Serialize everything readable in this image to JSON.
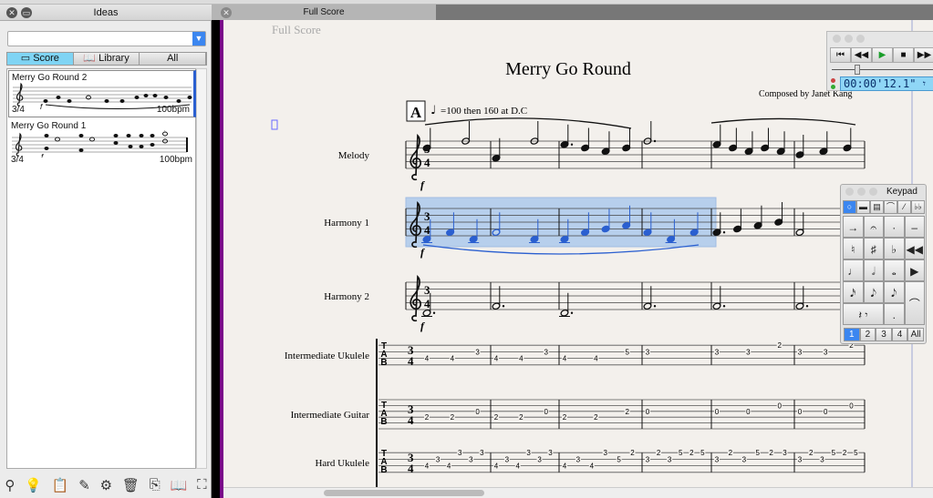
{
  "ideas_panel": {
    "title": "Ideas",
    "search_value": "",
    "tabs": [
      {
        "label": "Score",
        "selected": true
      },
      {
        "label": "Library",
        "selected": false
      },
      {
        "label": "All",
        "selected": false
      }
    ],
    "items": [
      {
        "title": "Merry Go Round 2",
        "time_signature": "3/4",
        "tempo": "100bpm",
        "dynamic": "f",
        "selected": true
      },
      {
        "title": "Merry Go Round 1",
        "time_signature": "3/4",
        "tempo": "100bpm",
        "dynamic": "f",
        "selected": false
      }
    ],
    "toolbar_icons": [
      "capture-idea-icon",
      "new-idea-icon",
      "paste-idea-icon",
      "edit-idea-icon",
      "idea-settings-icon",
      "delete-icon",
      "import-icon",
      "library-icon",
      "fullscreen-icon"
    ]
  },
  "document_tab": {
    "label": "Full Score"
  },
  "score": {
    "part_name_header": "Full Score",
    "title": "Merry Go Round",
    "composer": "Composed by Janet Kang",
    "rehearsal_mark": "A",
    "tempo_text": "=100 then 160 at D.C",
    "time_signature": [
      "3",
      "4"
    ],
    "dynamic": "f",
    "staves": [
      {
        "name": "Melody",
        "type": "notation",
        "notes": [
          [
            [
              6,
              "q"
            ],
            [
              8,
              "h"
            ]
          ],
          [
            [
              3,
              "q"
            ],
            [
              8,
              "h"
            ]
          ],
          [
            [
              7,
              "qd"
            ],
            [
              6,
              "e"
            ],
            [
              5,
              "e"
            ],
            [
              6,
              "e"
            ]
          ],
          [
            [
              8,
              "hd"
            ]
          ],
          [
            [
              7,
              "q"
            ],
            [
              6,
              "e"
            ],
            [
              5,
              "e"
            ],
            [
              6,
              "q"
            ],
            [
              5,
              "q"
            ]
          ],
          [
            [
              4,
              "q"
            ],
            [
              5,
              "q"
            ],
            [
              6,
              "q"
            ]
          ]
        ]
      },
      {
        "name": "Harmony 1",
        "type": "notation",
        "selected_measures": 4,
        "notes": [
          [
            [
              -1,
              "q"
            ],
            [
              1,
              "q"
            ],
            [
              -1,
              "q"
            ]
          ],
          [
            [
              1,
              "h"
            ],
            [
              -1,
              "q"
            ]
          ],
          [
            [
              -1,
              "q"
            ],
            [
              1,
              "e"
            ],
            [
              2,
              "e"
            ],
            [
              3,
              "e"
            ]
          ],
          [
            [
              1,
              "q"
            ],
            [
              -1,
              "q"
            ],
            [
              1,
              "q"
            ]
          ],
          [
            [
              1,
              "qd"
            ],
            [
              2,
              "e"
            ],
            [
              3,
              "e"
            ],
            [
              4,
              "e"
            ]
          ],
          [
            [
              1,
              "h"
            ]
          ]
        ]
      },
      {
        "name": "Harmony 2",
        "type": "notation",
        "notes": [
          [
            [
              -1,
              "hd"
            ]
          ],
          [
            [
              1,
              "hd"
            ]
          ],
          [
            [
              -1,
              "hd"
            ]
          ],
          [
            [
              1,
              "hd"
            ]
          ],
          [
            [
              1,
              "hd"
            ]
          ],
          [
            [
              1,
              "hd"
            ]
          ]
        ]
      },
      {
        "name": "Intermediate Ukulele",
        "type": "tab",
        "strings": 4,
        "measures": [
          [
            [
              3,
              "4"
            ],
            [
              3,
              "4"
            ],
            [
              2,
              "3"
            ]
          ],
          [
            [
              3,
              "4"
            ],
            [
              3,
              "4"
            ],
            [
              2,
              "3"
            ]
          ],
          [
            [
              3,
              "4"
            ],
            [
              3,
              "4"
            ],
            [
              2,
              "5"
            ]
          ],
          [
            [
              2,
              "3"
            ]
          ],
          [
            [
              2,
              "3"
            ],
            [
              2,
              "3"
            ],
            [
              1,
              "2"
            ]
          ],
          [
            [
              2,
              "3"
            ],
            [
              2,
              "3"
            ],
            [
              1,
              "2"
            ]
          ]
        ]
      },
      {
        "name": "Intermediate Guitar",
        "type": "tab",
        "strings": 6,
        "measures": [
          [
            [
              4,
              "2"
            ],
            [
              4,
              "2"
            ],
            [
              3,
              "0"
            ]
          ],
          [
            [
              4,
              "2"
            ],
            [
              4,
              "2"
            ],
            [
              3,
              "0"
            ]
          ],
          [
            [
              4,
              "2"
            ],
            [
              4,
              "2"
            ],
            [
              3,
              "2"
            ]
          ],
          [
            [
              3,
              "0"
            ]
          ],
          [
            [
              3,
              "0"
            ],
            [
              3,
              "0"
            ],
            [
              2,
              "0"
            ]
          ],
          [
            [
              3,
              "0"
            ],
            [
              3,
              "0"
            ],
            [
              2,
              "0"
            ]
          ]
        ]
      },
      {
        "name": "Hard Ukulele",
        "type": "tab",
        "strings": 4,
        "measures": [
          [
            [
              3,
              "4"
            ],
            [
              2,
              "3"
            ],
            [
              3,
              "4"
            ],
            [
              1,
              "3"
            ],
            [
              2,
              "3"
            ],
            [
              1,
              "3"
            ]
          ],
          [
            [
              3,
              "4"
            ],
            [
              2,
              "3"
            ],
            [
              3,
              "4"
            ],
            [
              1,
              "3"
            ],
            [
              2,
              "3"
            ],
            [
              1,
              "3"
            ]
          ],
          [
            [
              3,
              "4"
            ],
            [
              2,
              "3"
            ],
            [
              3,
              "4"
            ],
            [
              1,
              "3"
            ],
            [
              2,
              "5"
            ],
            [
              1,
              "2"
            ]
          ],
          [
            [
              2,
              "3"
            ],
            [
              1,
              "2"
            ],
            [
              2,
              "3"
            ],
            [
              1,
              "5"
            ],
            [
              1,
              "2"
            ],
            [
              1,
              "5"
            ]
          ],
          [
            [
              2,
              "3"
            ],
            [
              1,
              "2"
            ],
            [
              2,
              "3"
            ],
            [
              1,
              "5"
            ],
            [
              1,
              "2"
            ],
            [
              1,
              "3"
            ]
          ],
          [
            [
              2,
              "3"
            ],
            [
              1,
              "2"
            ],
            [
              2,
              "3"
            ],
            [
              1,
              "5"
            ],
            [
              1,
              "2"
            ],
            [
              1,
              "5"
            ]
          ]
        ]
      }
    ]
  },
  "transport": {
    "time": "00:00'12.1\"",
    "buttons": [
      "rewind-to-start",
      "rewind",
      "play",
      "stop",
      "fast-forward"
    ],
    "play_color": "#1a9e2a",
    "position_fraction": 0.25
  },
  "keypad": {
    "title": "Keypad",
    "top_tabs": [
      "common-notes",
      "more-notes",
      "beams",
      "articulations",
      "jazz",
      "accidentals"
    ],
    "keys": [
      "→",
      "𝄐",
      "·",
      "–",
      "♮",
      "♯",
      "♭",
      "◀◀",
      "♩",
      "𝅗𝅥",
      "𝅝",
      "▶",
      "𝅘𝅥𝅯",
      "𝅘𝅥𝅮",
      "𝅘𝅥𝅮",
      "⌒",
      "𝄽 𝄾",
      "."
    ],
    "voices": [
      "1",
      "2",
      "3",
      "4",
      "All"
    ],
    "selected_voice": "1"
  },
  "colors": {
    "selection": "#2a5fd0",
    "selection_fill": "#a9c8ec",
    "paper": "#f3f0ec",
    "accent_purple": "#7a0a8a"
  }
}
